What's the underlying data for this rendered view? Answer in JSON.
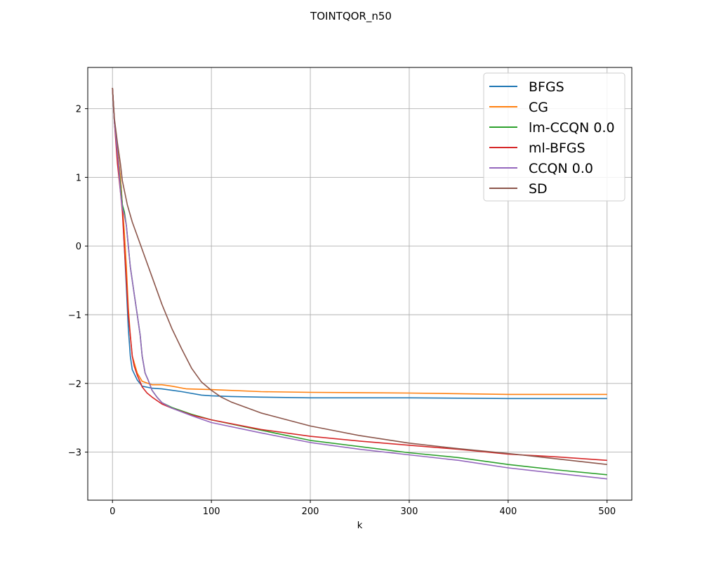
{
  "chart_data": {
    "type": "line",
    "title": "TOINTQOR_n50",
    "xlabel": "k",
    "ylabel": "",
    "xlim": [
      -25,
      525
    ],
    "ylim": [
      -3.7,
      2.6
    ],
    "xticks": [
      0,
      100,
      200,
      300,
      400,
      500
    ],
    "yticks": [
      2,
      1,
      0,
      -1,
      -2,
      -3
    ],
    "xtick_labels": [
      "0",
      "100",
      "200",
      "300",
      "400",
      "500"
    ],
    "ytick_labels": [
      "2",
      "1",
      "0",
      "−1",
      "−2",
      "−3"
    ],
    "grid": true,
    "legend_position": "top-right",
    "series": [
      {
        "name": "BFGS",
        "color": "#1f77b4",
        "x": [
          0,
          2,
          5,
          8,
          10,
          12,
          14,
          16,
          18,
          20,
          25,
          30,
          40,
          50,
          70,
          90,
          100,
          120,
          150,
          200,
          300,
          400,
          500
        ],
        "y": [
          2.3,
          1.8,
          1.4,
          1.0,
          0.6,
          0.0,
          -0.6,
          -1.2,
          -1.6,
          -1.8,
          -1.95,
          -2.04,
          -2.07,
          -2.08,
          -2.12,
          -2.17,
          -2.18,
          -2.19,
          -2.2,
          -2.21,
          -2.21,
          -2.22,
          -2.22
        ]
      },
      {
        "name": "CG",
        "color": "#ff7f0e",
        "x": [
          0,
          2,
          5,
          8,
          10,
          12,
          14,
          16,
          18,
          20,
          25,
          30,
          40,
          50,
          60,
          75,
          100,
          150,
          200,
          300,
          400,
          500
        ],
        "y": [
          2.3,
          1.8,
          1.4,
          1.0,
          0.6,
          0.2,
          -0.3,
          -0.9,
          -1.3,
          -1.6,
          -1.85,
          -1.97,
          -2.02,
          -2.02,
          -2.04,
          -2.08,
          -2.09,
          -2.12,
          -2.13,
          -2.14,
          -2.16,
          -2.16
        ]
      },
      {
        "name": "lm-CCQN 0.0",
        "color": "#2ca02c",
        "x": [
          0,
          2,
          4,
          6,
          8,
          10,
          12,
          14,
          16,
          18,
          20,
          22,
          25,
          28,
          30,
          33,
          36,
          40,
          45,
          50,
          60,
          80,
          100,
          150,
          200,
          250,
          300,
          350,
          400,
          450,
          500
        ],
        "y": [
          2.3,
          1.8,
          1.5,
          1.2,
          0.9,
          0.6,
          0.5,
          0.3,
          0.0,
          -0.3,
          -0.5,
          -0.7,
          -1.0,
          -1.3,
          -1.6,
          -1.85,
          -1.95,
          -2.1,
          -2.2,
          -2.28,
          -2.35,
          -2.45,
          -2.53,
          -2.68,
          -2.83,
          -2.92,
          -3.01,
          -3.08,
          -3.18,
          -3.26,
          -3.33
        ]
      },
      {
        "name": "ml-BFGS",
        "color": "#d62728",
        "x": [
          0,
          2,
          5,
          8,
          10,
          12,
          14,
          16,
          18,
          20,
          22,
          25,
          28,
          30,
          35,
          40,
          50,
          60,
          80,
          100,
          150,
          200,
          250,
          300,
          350,
          400,
          450,
          500
        ],
        "y": [
          2.3,
          1.8,
          1.2,
          0.8,
          0.5,
          0.0,
          -0.5,
          -1.0,
          -1.3,
          -1.6,
          -1.75,
          -1.88,
          -1.98,
          -2.05,
          -2.14,
          -2.2,
          -2.3,
          -2.36,
          -2.46,
          -2.53,
          -2.67,
          -2.77,
          -2.84,
          -2.9,
          -2.96,
          -3.03,
          -3.07,
          -3.12
        ]
      },
      {
        "name": "CCQN 0.0",
        "color": "#9467bd",
        "x": [
          0,
          2,
          4,
          6,
          8,
          10,
          12,
          14,
          16,
          18,
          20,
          22,
          25,
          28,
          30,
          33,
          36,
          40,
          45,
          50,
          60,
          80,
          100,
          150,
          200,
          250,
          300,
          350,
          400,
          450,
          500
        ],
        "y": [
          2.3,
          1.8,
          1.5,
          1.2,
          0.8,
          0.55,
          0.45,
          0.3,
          0.0,
          -0.3,
          -0.5,
          -0.7,
          -1.0,
          -1.3,
          -1.6,
          -1.85,
          -1.95,
          -2.1,
          -2.2,
          -2.28,
          -2.36,
          -2.47,
          -2.57,
          -2.72,
          -2.86,
          -2.96,
          -3.04,
          -3.12,
          -3.23,
          -3.31,
          -3.39
        ]
      },
      {
        "name": "SD",
        "color": "#8c564b",
        "x": [
          0,
          2,
          5,
          8,
          10,
          15,
          20,
          25,
          30,
          40,
          50,
          60,
          70,
          80,
          90,
          100,
          110,
          120,
          150,
          200,
          250,
          300,
          350,
          400,
          450,
          500
        ],
        "y": [
          2.3,
          1.85,
          1.5,
          1.2,
          0.95,
          0.6,
          0.35,
          0.15,
          -0.05,
          -0.45,
          -0.85,
          -1.2,
          -1.5,
          -1.78,
          -1.98,
          -2.1,
          -2.2,
          -2.27,
          -2.43,
          -2.62,
          -2.76,
          -2.87,
          -2.95,
          -3.02,
          -3.1,
          -3.18
        ]
      }
    ]
  }
}
